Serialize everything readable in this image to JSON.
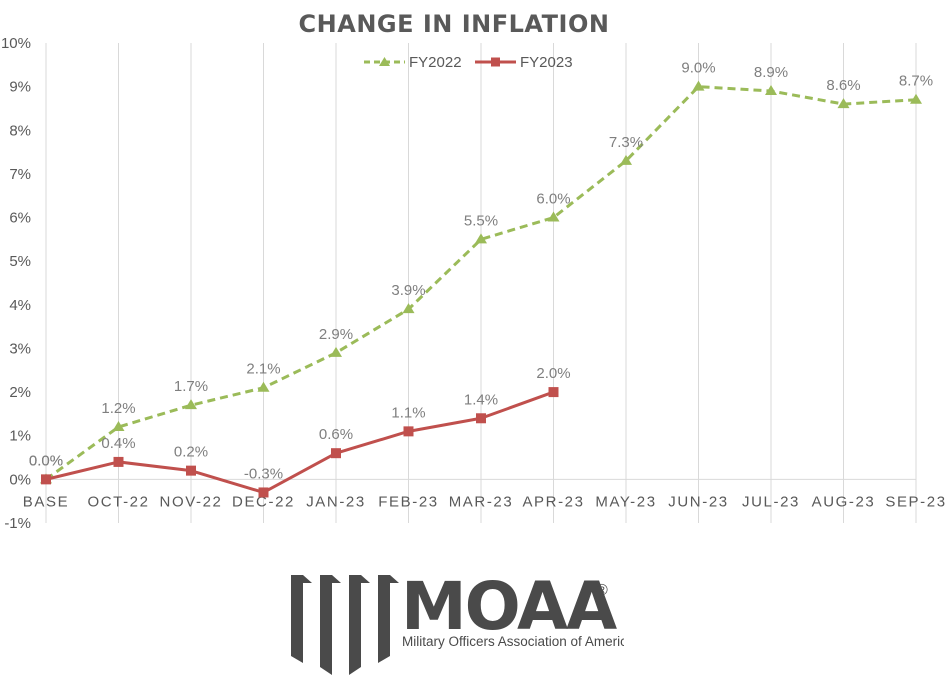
{
  "chart_data": {
    "type": "line",
    "title": "CHANGE IN INFLATION",
    "xlabel": "",
    "ylabel": "",
    "categories": [
      "BASE",
      "OCT-22",
      "NOV-22",
      "DEC-22",
      "JAN-23",
      "FEB-23",
      "MAR-23",
      "APR-23",
      "MAY-23",
      "JUN-23",
      "JUL-23",
      "AUG-23",
      "SEP-23"
    ],
    "series": [
      {
        "name": "FY2022",
        "color": "#9bbb59",
        "line_style": "dashed",
        "marker": "triangle",
        "values": [
          0.0,
          1.2,
          1.7,
          2.1,
          2.9,
          3.9,
          5.5,
          6.0,
          7.3,
          9.0,
          8.9,
          8.6,
          8.7
        ],
        "labels": [
          "0.0%",
          "1.2%",
          "1.7%",
          "2.1%",
          "2.9%",
          "3.9%",
          "5.5%",
          "6.0%",
          "7.3%",
          "9.0%",
          "8.9%",
          "8.6%",
          "8.7%"
        ]
      },
      {
        "name": "FY2023",
        "color": "#c0504d",
        "line_style": "solid",
        "marker": "square",
        "values": [
          0.0,
          0.4,
          0.2,
          -0.3,
          0.6,
          1.1,
          1.4,
          2.0
        ],
        "labels": [
          "0.0%",
          "0.4%",
          "0.2%",
          "-0.3%",
          "0.6%",
          "1.1%",
          "1.4%",
          "2.0%"
        ]
      }
    ],
    "ylim": [
      -1,
      10
    ],
    "yticks": [
      -1,
      0,
      1,
      2,
      3,
      4,
      5,
      6,
      7,
      8,
      9,
      10
    ],
    "ytick_labels": [
      "-1%",
      "0%",
      "1%",
      "2%",
      "3%",
      "4%",
      "5%",
      "6%",
      "7%",
      "8%",
      "9%",
      "10%"
    ],
    "grid": "vertical",
    "legend": "top-center",
    "units": "percent"
  },
  "logo": {
    "wordmark": "MOAA",
    "registered": "®",
    "tagline": "Military Officers Association of America"
  }
}
